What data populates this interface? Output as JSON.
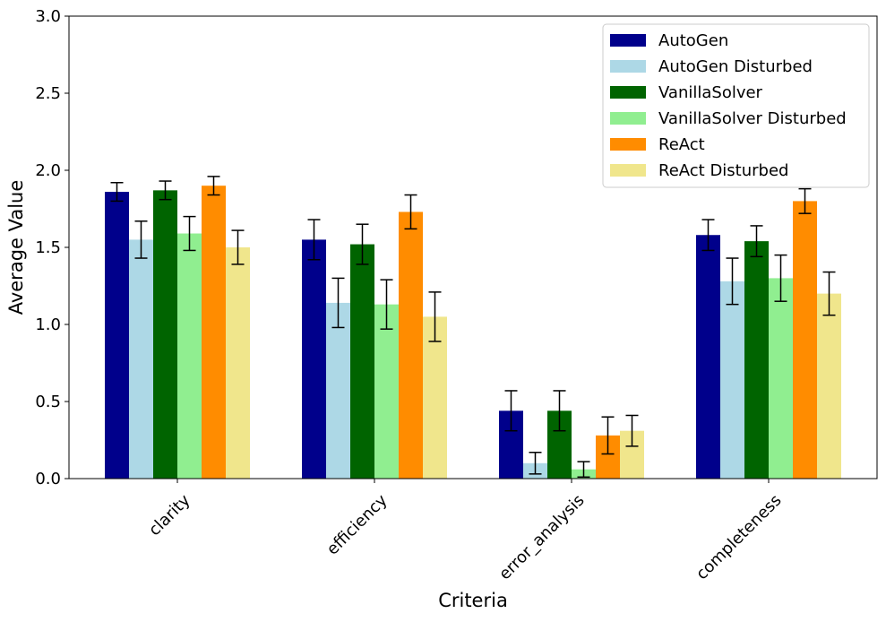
{
  "chart_data": {
    "type": "bar",
    "title": "",
    "xlabel": "Criteria",
    "ylabel": "Average Value",
    "ylim": [
      0,
      3.0
    ],
    "yticks": [
      "0.0",
      "0.5",
      "1.0",
      "1.5",
      "2.0",
      "2.5",
      "3.0"
    ],
    "categories": [
      "clarity",
      "efficiency",
      "error_analysis",
      "completeness"
    ],
    "legend_position": "top-right",
    "series": [
      {
        "name": "AutoGen",
        "color": "#00008b",
        "values": [
          1.86,
          1.55,
          0.44,
          1.58
        ],
        "errors": [
          0.06,
          0.13,
          0.13,
          0.1
        ]
      },
      {
        "name": "AutoGen Disturbed",
        "color": "#add8e6",
        "values": [
          1.55,
          1.14,
          0.1,
          1.28
        ],
        "errors": [
          0.12,
          0.16,
          0.07,
          0.15
        ]
      },
      {
        "name": "VanillaSolver",
        "color": "#006400",
        "values": [
          1.87,
          1.52,
          0.44,
          1.54
        ],
        "errors": [
          0.06,
          0.13,
          0.13,
          0.1
        ]
      },
      {
        "name": "VanillaSolver Disturbed",
        "color": "#90ee90",
        "values": [
          1.59,
          1.13,
          0.06,
          1.3
        ],
        "errors": [
          0.11,
          0.16,
          0.05,
          0.15
        ]
      },
      {
        "name": "ReAct",
        "color": "#ff8c00",
        "values": [
          1.9,
          1.73,
          0.28,
          1.8
        ],
        "errors": [
          0.06,
          0.11,
          0.12,
          0.08
        ]
      },
      {
        "name": "ReAct Disturbed",
        "color": "#f0e68c",
        "values": [
          1.5,
          1.05,
          0.31,
          1.2
        ],
        "errors": [
          0.11,
          0.16,
          0.1,
          0.14
        ]
      }
    ]
  }
}
